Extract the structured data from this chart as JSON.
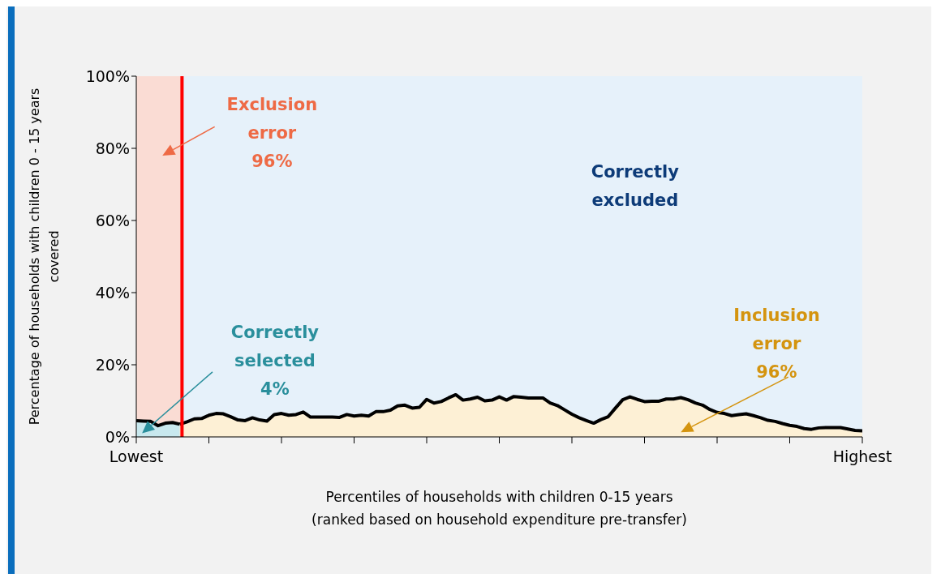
{
  "chart_data": {
    "type": "area",
    "xlabel": "Percentiles of households with children 0-15 years\n(ranked based on household expenditure pre-transfer)",
    "ylabel": "Percentage of households with children 0  - 15 years\ncovered",
    "categories": [
      "Lowest",
      null,
      null,
      null,
      null,
      null,
      null,
      null,
      null,
      null,
      null,
      null,
      null,
      null,
      null,
      null,
      null,
      null,
      null,
      null,
      null,
      null,
      null,
      null,
      null,
      null,
      null,
      null,
      null,
      null,
      null,
      null,
      null,
      null,
      null,
      null,
      null,
      null,
      null,
      null,
      null,
      null,
      null,
      null,
      null,
      null,
      null,
      null,
      null,
      null,
      null,
      null,
      null,
      null,
      null,
      null,
      null,
      null,
      null,
      null,
      null,
      null,
      null,
      null,
      null,
      null,
      null,
      null,
      null,
      null,
      null,
      null,
      null,
      null,
      null,
      null,
      null,
      null,
      null,
      null,
      null,
      null,
      null,
      null,
      null,
      null,
      null,
      null,
      null,
      null,
      null,
      null,
      null,
      null,
      null,
      null,
      null,
      null,
      null,
      null,
      "Highest"
    ],
    "series": [
      {
        "color": "#c8e8ee",
        "values": [
          4.5,
          4.4,
          4.3,
          3.1,
          3.8,
          4.0,
          3.5,
          null,
          null,
          null,
          null,
          null,
          null,
          null,
          null,
          null,
          null,
          null,
          null,
          null,
          null,
          null,
          null,
          null,
          null,
          null,
          null,
          null,
          null,
          null,
          null,
          null,
          null,
          null,
          null,
          null,
          null,
          null,
          null,
          null,
          null,
          null,
          null,
          null,
          null,
          null,
          null,
          null,
          null,
          null,
          null,
          null,
          null,
          null,
          null,
          null,
          null,
          null,
          null,
          null,
          null,
          null,
          null,
          null,
          null,
          null,
          null,
          null,
          null,
          null,
          null,
          null,
          null,
          null,
          null,
          null,
          null,
          null,
          null,
          null,
          null,
          null,
          null,
          null,
          null,
          null,
          null,
          null,
          null,
          null,
          null,
          null,
          null,
          null,
          null,
          null,
          null,
          null,
          null,
          null,
          null
        ]
      },
      {
        "color": "#fdf0d5",
        "values": [
          null,
          null,
          null,
          null,
          null,
          null,
          3.5,
          4.2,
          5.0,
          5.1,
          6.0,
          6.5,
          6.4,
          5.6,
          4.7,
          4.5,
          5.3,
          4.7,
          4.4,
          6.2,
          6.5,
          6.0,
          6.2,
          6.9,
          5.5,
          5.5,
          5.5,
          5.5,
          5.4,
          6.2,
          5.8,
          6.0,
          5.8,
          7.0,
          7.0,
          7.4,
          8.6,
          8.8,
          8.0,
          8.2,
          10.4,
          9.4,
          9.8,
          10.8,
          11.7,
          10.2,
          10.5,
          11.0,
          10.0,
          10.2,
          11.1,
          10.2,
          11.2,
          11.0,
          10.8,
          10.8,
          10.8,
          9.4,
          8.7,
          7.5,
          6.3,
          5.3,
          4.5,
          3.8,
          4.8,
          5.6,
          8.0,
          10.3,
          11.1,
          10.4,
          9.8,
          9.9,
          9.9,
          10.5,
          10.5,
          10.9,
          10.3,
          9.4,
          8.8,
          7.6,
          6.8,
          6.5,
          5.9,
          6.2,
          6.4,
          5.9,
          5.3,
          4.6,
          4.3,
          3.7,
          3.2,
          2.9,
          2.3,
          2.1,
          2.5,
          2.6,
          2.6,
          2.6,
          2.2,
          1.8,
          1.7
        ]
      }
    ],
    "ylim": [
      0,
      100
    ],
    "yticks": [
      {
        "value": 0,
        "label": "0%"
      },
      {
        "value": 20,
        "label": "20%"
      },
      {
        "value": 40,
        "label": "40%"
      },
      {
        "value": 60,
        "label": "60%"
      },
      {
        "value": 80,
        "label": "80%"
      },
      {
        "value": 100,
        "label": "100%"
      }
    ],
    "annotations": [
      "Exclusion\nerror\n96%",
      "Correctly\nexcluded",
      {
        "text": "Correctly\nselected\n4%",
        "y": 1
      },
      "Inclusion\nerror\n96%"
    ],
    "marker": "none",
    "line_style": "solid"
  }
}
